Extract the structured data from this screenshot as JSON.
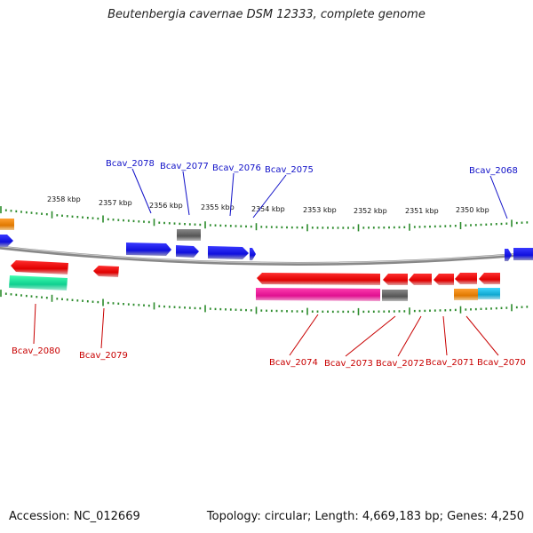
{
  "title": "Beutenbergia cavernae DSM 12333, complete genome",
  "accession": "Accession: NC_012669",
  "topology": "Topology: circular; Length: 4,669,183 bp; Genes: 4,250",
  "kbp_labels": [
    "2358 kbp",
    "2357 kbp",
    "2356 kbp",
    "2355 kbp",
    "2354 kbp",
    "2353 kbp",
    "2352 kbp",
    "2351 kbp",
    "2350 kbp"
  ],
  "upper_gene_labels": [
    "Bcav_2078",
    "Bcav_2077",
    "Bcav_2076",
    "Bcav_2075",
    "Bcav_2068"
  ],
  "lower_gene_labels": [
    "Bcav_2080",
    "Bcav_2079",
    "Bcav_2074",
    "Bcav_2073",
    "Bcav_2072",
    "Bcav_2071",
    "Bcav_2070"
  ],
  "colors": {
    "forward_gene": "#1a1aee",
    "reverse_gene": "#ee1111",
    "pseudo_gene": "#666666",
    "rna_orange": "#ee8811",
    "green_feature": "#22dd99",
    "magenta_feature": "#ee2299",
    "cyan_feature": "#22bbdd",
    "tick_green": "#2a8a2a",
    "backbone": "#888888",
    "upper_label": "#1010c8",
    "lower_label": "#c80000"
  }
}
